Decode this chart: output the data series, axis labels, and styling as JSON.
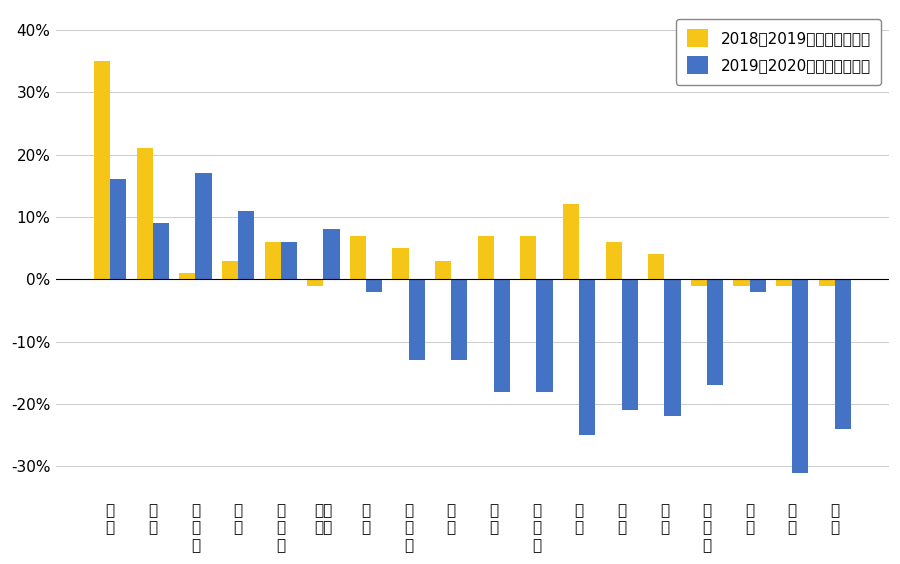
{
  "categories": [
    "越南",
    "台湾",
    "新加坡",
    "泰国",
    "爱尔兰",
    "马来西亚",
    "韩国",
    "墨西哥",
    "德国",
    "印度",
    "意大利",
    "法国",
    "英国",
    "日本",
    "加拿大",
    "中国",
    "巴西",
    "非洲"
  ],
  "values_2018_2019": [
    35,
    21,
    1,
    3,
    6,
    -1,
    7,
    5,
    3,
    7,
    7,
    12,
    6,
    4,
    -1,
    -1,
    -1,
    -1
  ],
  "values_2019_2020": [
    16,
    9,
    17,
    11,
    6,
    8,
    -2,
    -13,
    -13,
    -18,
    -18,
    -25,
    -21,
    -22,
    -17,
    -2,
    -31,
    -24
  ],
  "color_2018_2019": "#F5C518",
  "color_2019_2020": "#4472C4",
  "legend_labels": [
    "2018至2019年美国进口增长",
    "2019至2020年美国进口增长"
  ],
  "ylim": [
    -35,
    43
  ],
  "yticks": [
    -30,
    -20,
    -10,
    0,
    10,
    20,
    30,
    40
  ],
  "ytick_labels": [
    "-30%",
    "-20%",
    "-10%",
    "0%",
    "10%",
    "20%",
    "30%",
    "40%"
  ],
  "background_color": "#ffffff",
  "grid_color": "#cccccc",
  "bar_width": 0.38
}
